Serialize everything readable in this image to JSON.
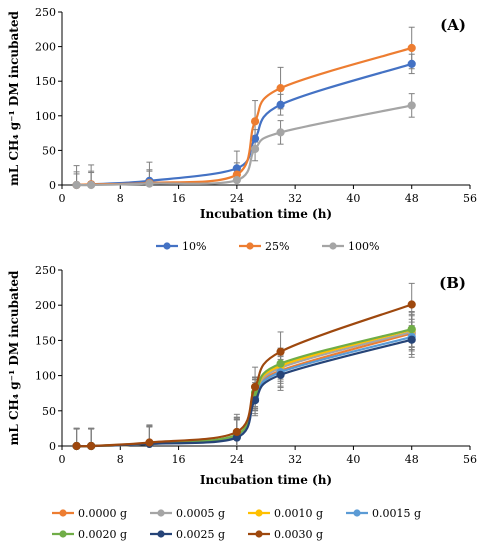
{
  "chart_data": [
    {
      "type": "line",
      "panel_label": "(A)",
      "ylabel": "mL CH₄ g⁻¹ DM incubated",
      "xlabel": "Incubation time (h)",
      "xlim": [
        0,
        56
      ],
      "ylim": [
        0,
        250
      ],
      "xticks": [
        0,
        8,
        16,
        24,
        32,
        40,
        48,
        56
      ],
      "yticks": [
        0,
        50,
        100,
        150,
        200,
        250
      ],
      "grid": false,
      "legend_position": "bottom",
      "x": [
        2,
        4,
        12,
        24,
        26.5,
        30,
        48
      ],
      "series": [
        {
          "name": "10%",
          "color": "#4472c4",
          "values": [
            0,
            1,
            6,
            24,
            67,
            116,
            175
          ],
          "errors": [
            28,
            28,
            27,
            25,
            13,
            15,
            14
          ]
        },
        {
          "name": "25%",
          "color": "#ed7d31",
          "values": [
            0,
            1,
            3,
            15,
            92,
            140,
            198
          ],
          "errors": [
            16,
            17,
            17,
            17,
            30,
            30,
            30
          ]
        },
        {
          "name": "100%",
          "color": "#a5a5a5",
          "values": [
            0,
            0,
            2,
            7,
            52,
            76,
            115
          ],
          "errors": [
            19,
            20,
            20,
            20,
            17,
            17,
            17
          ]
        }
      ]
    },
    {
      "type": "line",
      "panel_label": "(B)",
      "ylabel": "mL CH₄ g⁻¹ DM incubated",
      "xlabel": "Incubation time (h)",
      "xlim": [
        0,
        56
      ],
      "ylim": [
        0,
        250
      ],
      "xticks": [
        0,
        8,
        16,
        24,
        32,
        40,
        48,
        56
      ],
      "yticks": [
        0,
        50,
        100,
        150,
        200,
        250
      ],
      "grid": false,
      "legend_position": "bottom",
      "x": [
        2,
        4,
        12,
        24,
        26.5,
        30,
        48
      ],
      "series": [
        {
          "name": "0.0000 g",
          "color": "#ed7d31",
          "values": [
            0,
            0,
            3,
            14,
            73,
            107,
            160
          ],
          "errors": [
            24,
            24,
            24,
            24,
            22,
            22,
            25
          ]
        },
        {
          "name": "0.0005 g",
          "color": "#a5a5a5",
          "values": [
            0,
            0,
            3,
            15,
            72,
            111,
            162
          ],
          "errors": [
            25,
            25,
            25,
            25,
            22,
            22,
            25
          ]
        },
        {
          "name": "0.0010 g",
          "color": "#ffc000",
          "values": [
            0,
            0,
            3,
            15,
            75,
            114,
            165
          ],
          "errors": [
            25,
            25,
            25,
            25,
            22,
            22,
            25
          ]
        },
        {
          "name": "0.0015 g",
          "color": "#5b9bd5",
          "values": [
            0,
            0,
            3,
            13,
            68,
            105,
            155
          ],
          "errors": [
            25,
            25,
            25,
            25,
            22,
            22,
            25
          ]
        },
        {
          "name": "0.0020 g",
          "color": "#70ad47",
          "values": [
            0,
            0,
            4,
            16,
            76,
            117,
            166
          ],
          "errors": [
            25,
            25,
            25,
            25,
            22,
            22,
            25
          ]
        },
        {
          "name": "0.0025 g",
          "color": "#264478",
          "values": [
            0,
            0,
            3,
            12,
            65,
            101,
            151
          ],
          "errors": [
            25,
            25,
            25,
            25,
            22,
            22,
            25
          ]
        },
        {
          "name": "0.0030 g",
          "color": "#9e480e",
          "values": [
            0,
            0,
            5,
            20,
            84,
            134,
            201
          ],
          "errors": [
            25,
            25,
            25,
            25,
            28,
            28,
            30
          ]
        }
      ]
    }
  ]
}
